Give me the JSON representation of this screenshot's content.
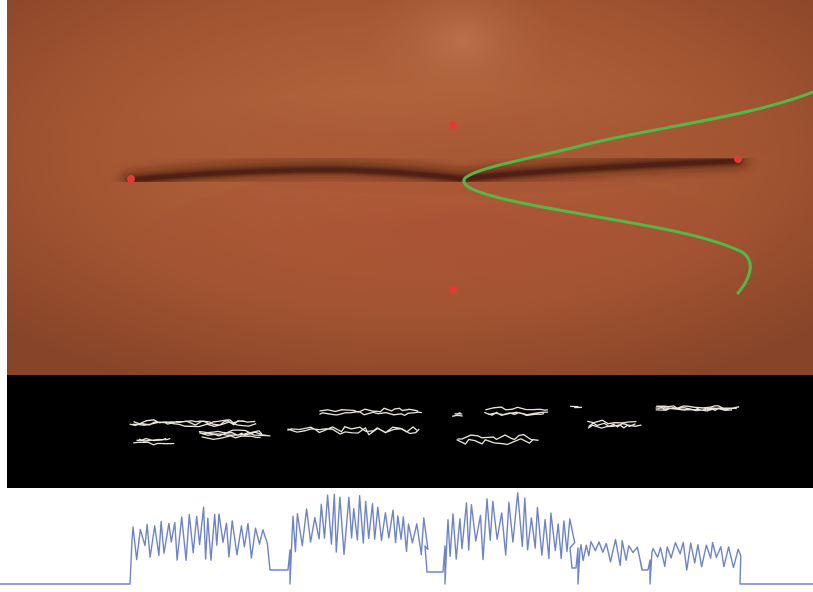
{
  "figure": {
    "panels": [
      {
        "name": "lip-region-photo"
      },
      {
        "name": "extracted-lip-texture-features"
      },
      {
        "name": "feature-signal-plot"
      }
    ]
  },
  "colors": {
    "skin": "#a55a34",
    "lip_shadow": "#4a1f14",
    "landmark": "#e23b36",
    "contour_curve": "#52b848",
    "feature_background": "#000000",
    "feature_strokes": "#e8e4dc",
    "signal_line": "#6f84c6",
    "signal_background": "#ffffff"
  },
  "landmarks": [
    {
      "name": "left-mouth-corner"
    },
    {
      "name": "upper-lip-center"
    },
    {
      "name": "right-mouth-corner"
    },
    {
      "name": "lower-lip-center"
    }
  ]
}
